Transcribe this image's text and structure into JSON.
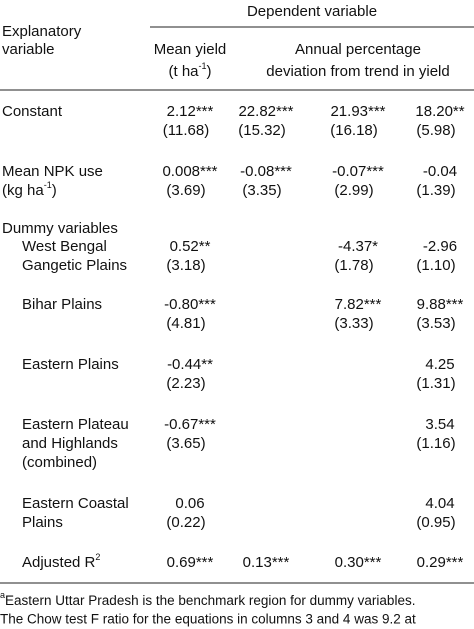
{
  "header": {
    "dependent": "Dependent variable",
    "explanatory": [
      "Explanatory",
      "variable"
    ],
    "mean_yield": [
      "Mean yield",
      {
        "parts": [
          "(t ha",
          "-1",
          ")"
        ]
      }
    ],
    "annual": [
      "Annual percentage",
      "deviation from trend in yield"
    ]
  },
  "table": {
    "rows": [
      {
        "label": [
          "Constant"
        ],
        "coef": [
          "2.12***",
          "22.82***",
          "21.93***",
          "18.20**"
        ],
        "se": [
          "(11.68)",
          "(15.32)",
          "(16.18)",
          "(5.98)"
        ]
      },
      {
        "label": [
          "Mean NPK use",
          {
            "parts": [
              "(kg ha",
              "-1",
              ")"
            ]
          }
        ],
        "coef": [
          "0.008***",
          "-0.08***",
          "-0.07***",
          "-0.04"
        ],
        "se": [
          "(3.69)",
          "(3.35)",
          "(2.99)",
          "(1.39)"
        ]
      },
      {
        "label": [
          "Dummy variables"
        ]
      },
      {
        "label": [
          "West Bengal",
          "Gangetic Plains"
        ],
        "indent": true,
        "coef": [
          "0.52**",
          null,
          "-4.37*",
          "-2.96"
        ],
        "se": [
          "(3.18)",
          null,
          "(1.78)",
          "(1.10)"
        ]
      },
      {
        "label": [
          "Bihar Plains"
        ],
        "indent": true,
        "coef": [
          "-0.80***",
          null,
          "7.82***",
          "9.88***"
        ],
        "se": [
          "(4.81)",
          null,
          "(3.33)",
          "(3.53)"
        ]
      },
      {
        "label": [
          "Eastern Plains"
        ],
        "indent": true,
        "coef": [
          "-0.44**",
          null,
          null,
          "4.25"
        ],
        "se": [
          "(2.23)",
          null,
          null,
          "(1.31)"
        ]
      },
      {
        "label": [
          "Eastern Plateau",
          "and Highlands",
          "(combined)"
        ],
        "indent": true,
        "coef": [
          "-0.67***",
          null,
          null,
          "3.54"
        ],
        "se": [
          "(3.65)",
          null,
          null,
          "(1.16)"
        ]
      },
      {
        "label": [
          "Eastern Coastal",
          "Plains"
        ],
        "indent": true,
        "coef": [
          "0.06",
          null,
          null,
          "4.04"
        ],
        "se": [
          "(0.22)",
          null,
          null,
          "(0.95)"
        ]
      },
      {
        "label": [
          {
            "parts": [
              "Adjusted R",
              "2"
            ]
          }
        ],
        "indent": true,
        "coef": [
          "0.69***",
          "0.13***",
          "0.30***",
          "0.29***"
        ]
      }
    ]
  },
  "footnote": [
    {
      "parts": [
        "a",
        "Eastern Uttar Pradesh is the benchmark region for dummy variables."
      ],
      "sup_first": true
    },
    "The Chow test F ratio for the equations in columns 3 and 4 was 9.2 at"
  ]
}
